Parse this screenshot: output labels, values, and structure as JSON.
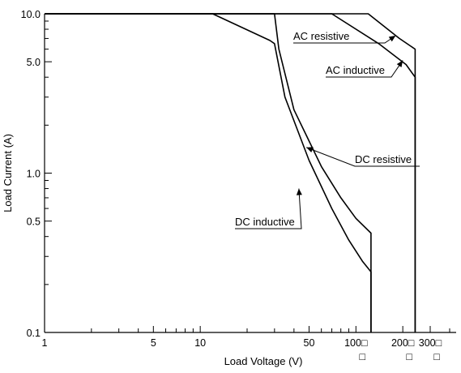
{
  "chart_data": {
    "type": "line",
    "title": "",
    "xlabel": "Load Voltage (V)",
    "ylabel": "Load Current (A)",
    "x_scale": "log",
    "y_scale": "log",
    "xlim": [
      1,
      400
    ],
    "ylim": [
      0.1,
      10
    ],
    "grid": false,
    "x_ticks": [
      {
        "value": 1,
        "label": "1"
      },
      {
        "value": 5,
        "label": "5"
      },
      {
        "value": 10,
        "label": "10"
      },
      {
        "value": 50,
        "label": "50"
      },
      {
        "value": 100,
        "label": "100□"
      },
      {
        "value": 200,
        "label": "200□"
      },
      {
        "value": 300,
        "label": "300□"
      }
    ],
    "x_sub_marks": [
      {
        "value": 100,
        "label": "□"
      },
      {
        "value": 200,
        "label": "□"
      },
      {
        "value": 300,
        "label": "□"
      }
    ],
    "y_ticks": [
      {
        "value": 0.1,
        "label": "0.1"
      },
      {
        "value": 0.5,
        "label": "0.5"
      },
      {
        "value": 1.0,
        "label": "1.0"
      },
      {
        "value": 5.0,
        "label": "5.0"
      },
      {
        "value": 10.0,
        "label": "10.0"
      }
    ],
    "series": [
      {
        "name": "DC inductive",
        "x": [
          1,
          12,
          28,
          30,
          35,
          50,
          70,
          90,
          110,
          125,
          125
        ],
        "y": [
          10,
          10,
          6.8,
          6.5,
          3.0,
          1.2,
          0.6,
          0.38,
          0.28,
          0.24,
          0.1
        ]
      },
      {
        "name": "DC resistive",
        "x": [
          1,
          30,
          32,
          40,
          60,
          80,
          100,
          125,
          125
        ],
        "y": [
          10,
          10,
          6.0,
          2.5,
          1.1,
          0.7,
          0.52,
          0.42,
          0.1
        ]
      },
      {
        "name": "AC resistive",
        "x": [
          1,
          120,
          190,
          240,
          240
        ],
        "y": [
          10,
          10,
          7.0,
          6.0,
          0.1
        ]
      },
      {
        "name": "AC inductive",
        "x": [
          1,
          70,
          140,
          210,
          240,
          240
        ],
        "y": [
          10,
          10,
          6.5,
          4.8,
          4.0,
          0.1
        ]
      }
    ],
    "annotations": [
      {
        "text": "AC resistive",
        "series": "AC resistive",
        "point": [
          180,
          7.3
        ]
      },
      {
        "text": "AC inductive",
        "series": "AC inductive",
        "point": [
          200,
          5.1
        ]
      },
      {
        "text": "DC resistive",
        "series": "DC resistive",
        "point": [
          48,
          1.45
        ]
      },
      {
        "text": "DC inductive",
        "series": "DC inductive",
        "point": [
          43,
          0.8
        ]
      }
    ]
  }
}
